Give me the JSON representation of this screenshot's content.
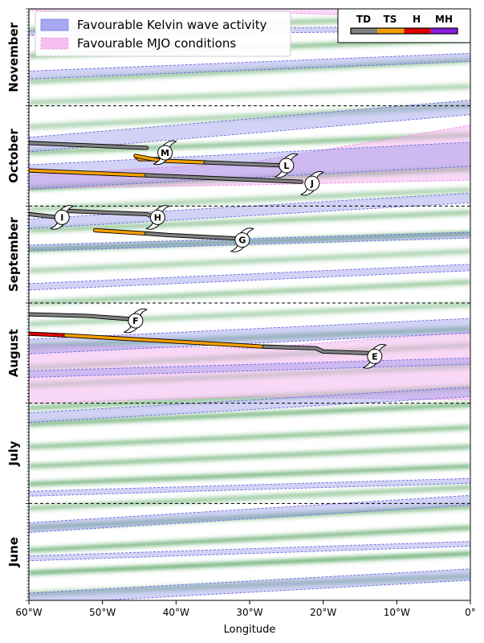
{
  "chart_data": {
    "type": "hovmoller",
    "xlabel": "Longitude",
    "xlim": [
      -60,
      0
    ],
    "x_ticks": [
      {
        "value": -60,
        "label": "60°W"
      },
      {
        "value": -50,
        "label": "50°W"
      },
      {
        "value": -40,
        "label": "40°W"
      },
      {
        "value": -30,
        "label": "30°W"
      },
      {
        "value": -20,
        "label": "20°W"
      },
      {
        "value": -10,
        "label": "10°W"
      },
      {
        "value": 0,
        "label": "0°"
      }
    ],
    "months": [
      {
        "name": "November",
        "start_day": 0,
        "days": 30
      },
      {
        "name": "October",
        "start_day": 30,
        "days": 31
      },
      {
        "name": "September",
        "start_day": 61,
        "days": 30
      },
      {
        "name": "August",
        "start_day": 91,
        "days": 31
      },
      {
        "name": "July",
        "start_day": 122,
        "days": 31
      },
      {
        "name": "June",
        "start_day": 153,
        "days": 30
      }
    ],
    "total_days": 183,
    "legend": {
      "kelvin_label": "Favourable Kelvin wave activity",
      "mjo_label": "Favourable MJO conditions",
      "kelvin_color": "#8f8fe8",
      "mjo_color": "#f7b8f0"
    },
    "intensity_legend": [
      {
        "label": "TD",
        "color": "#808080"
      },
      {
        "label": "TS",
        "color": "#f5a000"
      },
      {
        "label": "H",
        "color": "#e00000"
      },
      {
        "label": "MH",
        "color": "#8a1ee0"
      }
    ],
    "kelvin_bands": [
      {
        "day_w": -1.5,
        "day_e": -4.5,
        "width": 2.8
      },
      {
        "day_w": 20.5,
        "day_e": 15.0,
        "width": 2.5
      },
      {
        "day_w": 7.5,
        "day_e": 6.0,
        "width": 1.5
      },
      {
        "day_w": 42.0,
        "day_e": 30.5,
        "width": 4.5
      },
      {
        "day_w": 52.0,
        "day_e": 45.0,
        "width": 7.5
      },
      {
        "day_w": 66.5,
        "day_e": 58.5,
        "width": 3.0
      },
      {
        "day_w": 74.0,
        "day_e": 70.0,
        "width": 1.8
      },
      {
        "day_w": 86.0,
        "day_e": 80.0,
        "width": 2.0
      },
      {
        "day_w": 104.5,
        "day_e": 98.0,
        "width": 4.5
      },
      {
        "day_w": 113.0,
        "day_e": 109.0,
        "width": 2.0
      },
      {
        "day_w": 126.5,
        "day_e": 118.5,
        "width": 3.0
      },
      {
        "day_w": 150.0,
        "day_e": 146.0,
        "width": 1.5
      },
      {
        "day_w": 160.5,
        "day_e": 152.0,
        "width": 3.0
      },
      {
        "day_w": 170.0,
        "day_e": 165.5,
        "width": 1.5
      },
      {
        "day_w": 182.5,
        "day_e": 175.0,
        "width": 3.5
      }
    ],
    "mjo_regions": [
      {
        "points": [
          [
            -60,
            -1
          ],
          [
            -20,
            -1
          ],
          [
            0,
            -1
          ],
          [
            0,
            3
          ],
          [
            -30,
            1
          ],
          [
            -60,
            0.5
          ]
        ]
      },
      {
        "points": [
          [
            -60,
            51.5
          ],
          [
            -30,
            47.5
          ],
          [
            0,
            36
          ],
          [
            0,
            53
          ],
          [
            -30,
            54.5
          ],
          [
            -60,
            55.5
          ]
        ]
      },
      {
        "points": [
          [
            -60,
            104
          ],
          [
            -30,
            105
          ],
          [
            0,
            100
          ],
          [
            0,
            121
          ],
          [
            -30,
            120
          ],
          [
            -60,
            122
          ]
        ]
      }
    ],
    "green_bands": [
      {
        "day_w": 6.5,
        "day_e": 2.5,
        "strength": 0.5
      },
      {
        "day_w": 14.5,
        "day_e": 9.5,
        "strength": 0.6
      },
      {
        "day_w": 22.5,
        "day_e": 16.0,
        "strength": 0.5
      },
      {
        "day_w": 29.0,
        "day_e": 24.0,
        "strength": 0.4
      },
      {
        "day_w": 36.5,
        "day_e": 30.0,
        "strength": 0.4
      },
      {
        "day_w": 44.5,
        "day_e": 39.0,
        "strength": 0.6
      },
      {
        "day_w": 55.5,
        "day_e": 49.5,
        "strength": 0.9
      },
      {
        "day_w": 62.0,
        "day_e": 56.0,
        "strength": 0.4
      },
      {
        "day_w": 68.5,
        "day_e": 63.0,
        "strength": 0.5
      },
      {
        "day_w": 74.5,
        "day_e": 69.5,
        "strength": 0.8
      },
      {
        "day_w": 81.0,
        "day_e": 75.0,
        "strength": 0.4
      },
      {
        "day_w": 91.0,
        "day_e": 84.5,
        "strength": 0.5
      },
      {
        "day_w": 97.5,
        "day_e": 91.5,
        "strength": 0.4
      },
      {
        "day_w": 104.5,
        "day_e": 99.0,
        "strength": 0.6
      },
      {
        "day_w": 111.0,
        "day_e": 104.0,
        "strength": 0.5
      },
      {
        "day_w": 116.5,
        "day_e": 110.5,
        "strength": 0.5
      },
      {
        "day_w": 123.5,
        "day_e": 117.0,
        "strength": 0.6
      },
      {
        "day_w": 128.5,
        "day_e": 122.5,
        "strength": 0.7
      },
      {
        "day_w": 135.5,
        "day_e": 129.5,
        "strength": 0.6
      },
      {
        "day_w": 141.5,
        "day_e": 135.5,
        "strength": 0.6
      },
      {
        "day_w": 147.0,
        "day_e": 141.5,
        "strength": 0.7
      },
      {
        "day_w": 154.5,
        "day_e": 148.0,
        "strength": 0.5
      },
      {
        "day_w": 160.5,
        "day_e": 154.0,
        "strength": 0.6
      },
      {
        "day_w": 167.5,
        "day_e": 160.5,
        "strength": 0.7
      },
      {
        "day_w": 174.5,
        "day_e": 168.5,
        "strength": 0.8
      },
      {
        "day_w": 181.0,
        "day_e": 175.5,
        "strength": 0.5
      }
    ],
    "storms": [
      {
        "name": "M",
        "segments": [
          {
            "cat": "TD",
            "points": [
              [
                -60,
                41.5
              ],
              [
                -44,
                43.0
              ]
            ]
          },
          {
            "cat": "TS",
            "points": [
              [
                -45.5,
                45.5
              ],
              [
                -45,
                46.5
              ],
              [
                -42,
                46.5
              ]
            ]
          }
        ],
        "symbol_at": [
          -41.5,
          44.5
        ]
      },
      {
        "name": "L",
        "segments": [
          {
            "cat": "TS",
            "points": [
              [
                -45.5,
                45.5
              ],
              [
                -42,
                47.0
              ],
              [
                -36,
                47.5
              ]
            ]
          },
          {
            "cat": "TD",
            "points": [
              [
                -36,
                47.5
              ],
              [
                -25,
                48.5
              ]
            ]
          }
        ],
        "symbol_at": [
          -25,
          48.5
        ]
      },
      {
        "name": "J",
        "segments": [
          {
            "cat": "TS",
            "points": [
              [
                -60,
                50.0
              ],
              [
                -44,
                51.5
              ]
            ]
          },
          {
            "cat": "TD",
            "points": [
              [
                -44,
                51.5
              ],
              [
                -23,
                53.5
              ]
            ]
          }
        ],
        "symbol_at": [
          -21.5,
          54.0
        ]
      },
      {
        "name": "I",
        "segments": [
          {
            "cat": "TD",
            "points": [
              [
                -60,
                63.5
              ],
              [
                -56,
                64.5
              ]
            ]
          }
        ],
        "symbol_at": [
          -55.5,
          64.5
        ]
      },
      {
        "name": "H",
        "segments": [
          {
            "cat": "TD",
            "points": [
              [
                -55,
                62.5
              ],
              [
                -44,
                63.5
              ],
              [
                -43,
                64.5
              ]
            ]
          }
        ],
        "symbol_at": [
          -42.5,
          64.5
        ]
      },
      {
        "name": "G",
        "segments": [
          {
            "cat": "TS",
            "points": [
              [
                -51,
                68.5
              ],
              [
                -44,
                69.5
              ]
            ]
          },
          {
            "cat": "TD",
            "points": [
              [
                -44,
                69.5
              ],
              [
                -41,
                70.0
              ],
              [
                -32,
                71.0
              ]
            ]
          }
        ],
        "symbol_at": [
          -31,
          71.5
        ]
      },
      {
        "name": "F",
        "segments": [
          {
            "cat": "TD",
            "points": [
              [
                -60,
                94.5
              ],
              [
                -52,
                95.0
              ],
              [
                -46,
                96.0
              ]
            ]
          }
        ],
        "symbol_at": [
          -45.5,
          96.5
        ]
      },
      {
        "name": "E",
        "segments": [
          {
            "cat": "H",
            "points": [
              [
                -60,
                100.5
              ],
              [
                -55,
                101.0
              ]
            ]
          },
          {
            "cat": "TS",
            "points": [
              [
                -55,
                101.0
              ],
              [
                -28,
                104.5
              ]
            ]
          },
          {
            "cat": "TD",
            "points": [
              [
                -28,
                104.5
              ],
              [
                -21,
                105.0
              ],
              [
                -20,
                106.0
              ],
              [
                -14,
                106.5
              ]
            ]
          }
        ],
        "symbol_at": [
          -13,
          107.5
        ]
      }
    ]
  }
}
